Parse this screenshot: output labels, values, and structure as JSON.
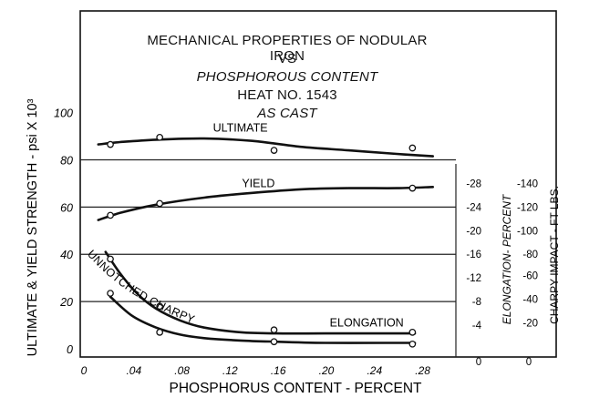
{
  "chart_data": {
    "type": "line",
    "title_lines": [
      "MECHANICAL PROPERTIES OF NODULAR IRON",
      "VS",
      "PHOSPHOROUS CONTENT",
      "HEAT NO. 1543",
      "AS CAST"
    ],
    "xlabel": "PHOSPHORUS CONTENT - PERCENT",
    "ylabel_left": "ULTIMATE & YIELD STRENGTH - psi X 10³",
    "ylabel_right_1": "ELONGATION- PERCENT",
    "ylabel_right_2": "CHARPY IMPACT - FT LBS.",
    "xlim": [
      0,
      0.3
    ],
    "ylim": [
      0,
      110
    ],
    "x_ticks": [
      "0",
      ".04",
      ".08",
      ".12",
      ".16",
      ".20",
      ".24",
      ".28"
    ],
    "y_ticks": [
      "0",
      "20",
      "40",
      "60",
      "80",
      "100"
    ],
    "right_axis_1_ticks": [
      {
        "label": "-4",
        "y": 10
      },
      {
        "label": "-8",
        "y": 20
      },
      {
        "label": "-12",
        "y": 30
      },
      {
        "label": "-16",
        "y": 40
      },
      {
        "label": "-20",
        "y": 50
      },
      {
        "label": "-24",
        "y": 60
      },
      {
        "label": "-28",
        "y": 70
      }
    ],
    "right_axis_1_zero": "0",
    "right_axis_2_ticks": [
      {
        "label": "-20",
        "y": 11
      },
      {
        "label": "-40",
        "y": 21
      },
      {
        "label": "-60",
        "y": 31
      },
      {
        "label": "-80",
        "y": 40
      },
      {
        "label": "-100",
        "y": 50
      },
      {
        "label": "-120",
        "y": 60
      },
      {
        "label": "-140",
        "y": 70
      }
    ],
    "right_axis_2_zero": "0",
    "series": [
      {
        "name": "ULTIMATE",
        "curve_x": [
          0.012,
          0.03,
          0.06,
          0.1,
          0.14,
          0.18,
          0.22,
          0.26,
          0.29
        ],
        "curve_y": [
          86.5,
          87.5,
          88.5,
          89,
          88,
          85.5,
          84,
          82.5,
          81.5
        ],
        "points_x": [
          0.022,
          0.063,
          0.158,
          0.273
        ],
        "points_y": [
          86.5,
          89.5,
          84,
          85
        ]
      },
      {
        "name": "YIELD",
        "curve_x": [
          0.012,
          0.03,
          0.06,
          0.1,
          0.14,
          0.18,
          0.22,
          0.26,
          0.29
        ],
        "curve_y": [
          54.5,
          57.5,
          61,
          64,
          66,
          67.5,
          68,
          68,
          68.5
        ],
        "points_x": [
          0.022,
          0.063,
          0.273
        ],
        "points_y": [
          56.5,
          61.5,
          68
        ]
      },
      {
        "name": "UNNOTCHED CHARPY",
        "curve_x": [
          0.018,
          0.03,
          0.045,
          0.06,
          0.08,
          0.1,
          0.13,
          0.16,
          0.2,
          0.25,
          0.275
        ],
        "curve_y": [
          41,
          32,
          23,
          17,
          12,
          9,
          7,
          6.5,
          6.5,
          6.5,
          6.5
        ],
        "points_x": [
          0.022,
          0.063,
          0.158,
          0.273
        ],
        "points_y": [
          38,
          18,
          8,
          7
        ]
      },
      {
        "name": "ELONGATION",
        "curve_x": [
          0.022,
          0.04,
          0.06,
          0.08,
          0.1,
          0.13,
          0.16,
          0.2,
          0.25,
          0.275
        ],
        "curve_y": [
          22,
          14,
          9,
          6,
          4.5,
          3.5,
          3,
          2.5,
          2.5,
          2.5
        ],
        "points_x": [
          0.022,
          0.063,
          0.158,
          0.273
        ],
        "points_y": [
          23.5,
          7,
          3,
          2
        ]
      }
    ],
    "curve_labels": [
      {
        "text": "ULTIMATE",
        "x": 0.13,
        "y": 92
      },
      {
        "text": "YIELD",
        "x": 0.145,
        "y": 68.5
      },
      {
        "text": "ELONGATION",
        "x": 0.235,
        "y": 9.5
      }
    ],
    "charpy_label": "UNNOTCHED CHARPY"
  }
}
